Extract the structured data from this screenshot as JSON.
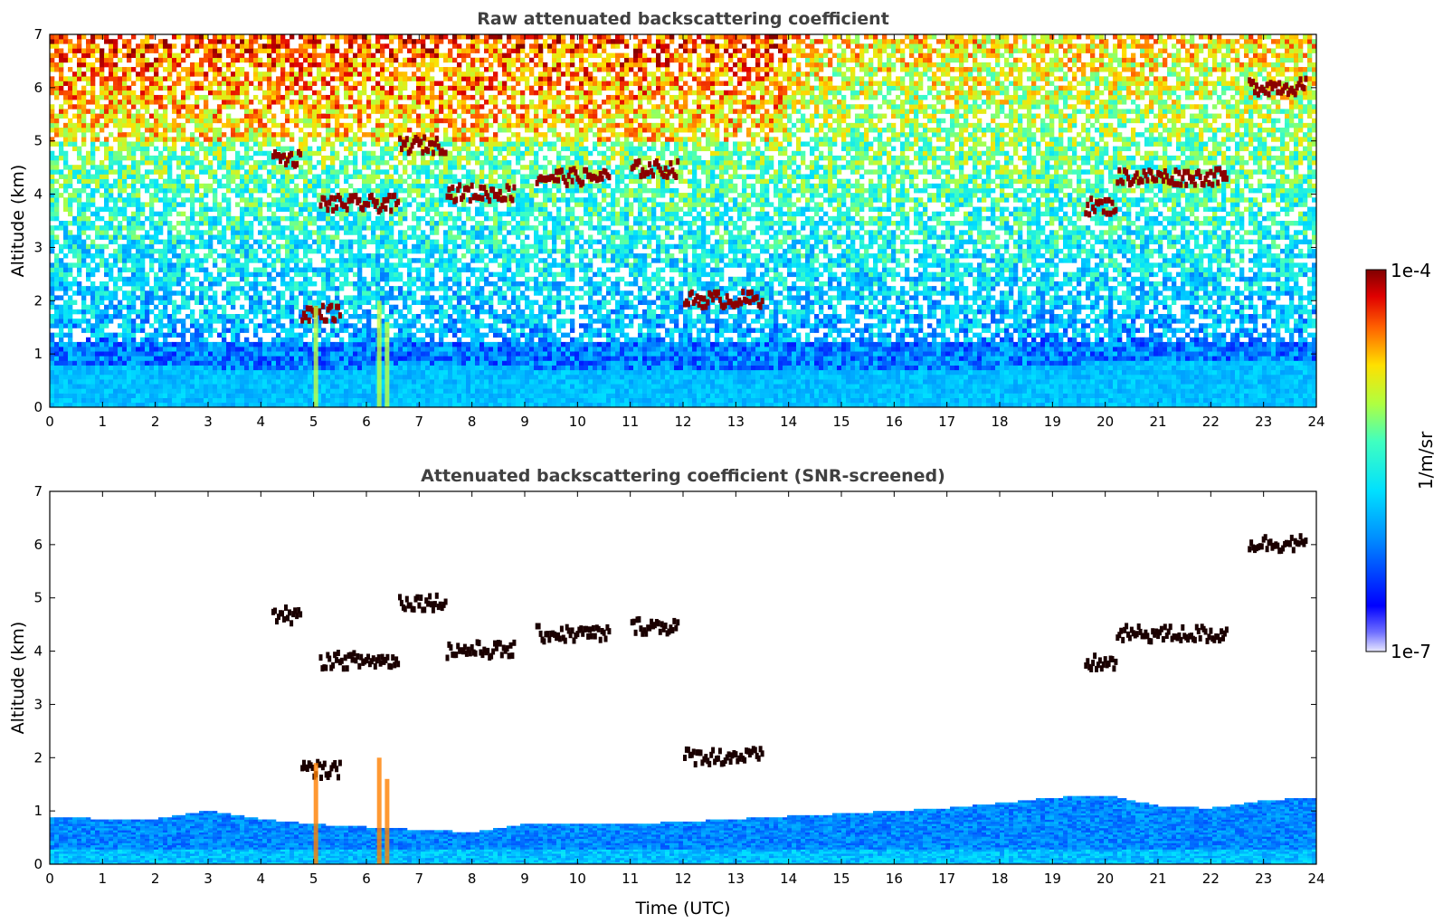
{
  "chart_data": [
    {
      "type": "heatmap",
      "title": "Raw attenuated backscattering coefficient",
      "xlabel": "",
      "ylabel": "Altitude (km)",
      "xlim": [
        0,
        24
      ],
      "ylim": [
        0,
        7
      ],
      "x_ticks": [
        "0",
        "1",
        "2",
        "3",
        "4",
        "5",
        "6",
        "7",
        "8",
        "9",
        "10",
        "11",
        "12",
        "13",
        "14",
        "15",
        "16",
        "17",
        "18",
        "19",
        "20",
        "21",
        "22",
        "23",
        "24"
      ],
      "y_ticks": [
        "0",
        "1",
        "2",
        "3",
        "4",
        "5",
        "6",
        "7"
      ],
      "layers": {
        "boundary_layer_top_km": [
          0.8,
          0.8,
          0.8,
          0.75,
          0.7,
          0.7,
          0.75,
          0.75,
          0.75,
          0.75,
          0.7,
          0.7,
          0.7,
          0.7,
          0.7,
          0.7,
          0.7,
          0.7,
          0.75,
          0.8,
          0.85,
          0.85,
          0.85,
          0.85,
          0.85
        ]
      },
      "cloud_features": [
        {
          "time_start": 4.2,
          "time_end": 4.75,
          "alt_km": 4.65
        },
        {
          "time_start": 4.75,
          "time_end": 5.5,
          "alt_km": 1.75
        },
        {
          "time_start": 5.1,
          "time_end": 6.6,
          "alt_km": 3.8
        },
        {
          "time_start": 6.6,
          "time_end": 7.5,
          "alt_km": 4.9
        },
        {
          "time_start": 7.5,
          "time_end": 8.8,
          "alt_km": 4.0
        },
        {
          "time_start": 9.2,
          "time_end": 10.6,
          "alt_km": 4.3
        },
        {
          "time_start": 11.0,
          "time_end": 11.9,
          "alt_km": 4.45
        },
        {
          "time_start": 12.0,
          "time_end": 13.5,
          "alt_km": 2.0
        },
        {
          "time_start": 19.6,
          "time_end": 20.2,
          "alt_km": 3.75
        },
        {
          "time_start": 20.2,
          "time_end": 22.3,
          "alt_km": 4.3
        },
        {
          "time_start": 22.7,
          "time_end": 23.8,
          "alt_km": 6.0
        }
      ]
    },
    {
      "type": "heatmap",
      "title": "Attenuated backscattering coefficient (SNR-screened)",
      "xlabel": "Time (UTC)",
      "ylabel": "Altitude (km)",
      "xlim": [
        0,
        24
      ],
      "ylim": [
        0,
        7
      ],
      "x_ticks": [
        "0",
        "1",
        "2",
        "3",
        "4",
        "5",
        "6",
        "7",
        "8",
        "9",
        "10",
        "11",
        "12",
        "13",
        "14",
        "15",
        "16",
        "17",
        "18",
        "19",
        "20",
        "21",
        "22",
        "23",
        "24"
      ],
      "y_ticks": [
        "0",
        "1",
        "2",
        "3",
        "4",
        "5",
        "6",
        "7"
      ],
      "layers": {
        "boundary_layer_top_km": [
          0.9,
          0.85,
          0.85,
          1.0,
          0.85,
          0.75,
          0.7,
          0.65,
          0.6,
          0.75,
          0.75,
          0.75,
          0.8,
          0.85,
          0.9,
          0.95,
          1.0,
          1.05,
          1.15,
          1.25,
          1.3,
          1.1,
          1.05,
          1.2,
          1.25
        ]
      }
    }
  ],
  "colorbar": {
    "max_label": "1e-4",
    "min_label": "1e-7",
    "unit_label": "1/m/sr",
    "scale": "log",
    "colormap": "jet"
  },
  "colors": {
    "title_gray": "#404040",
    "cloud_red": "#8b0000",
    "blue_layer": "#1e6fe0"
  }
}
